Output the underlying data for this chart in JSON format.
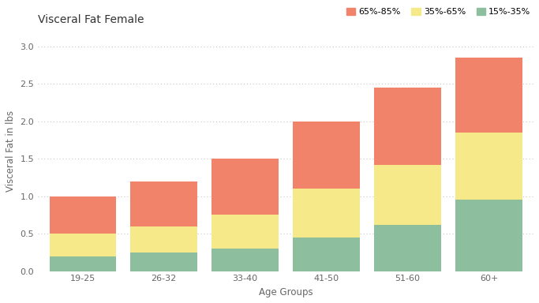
{
  "title": "Visceral Fat Female",
  "xlabel": "Age Groups",
  "ylabel": "Visceral Fat in lbs",
  "categories": [
    "19-25",
    "26-32",
    "33-40",
    "41-50",
    "51-60",
    "60+"
  ],
  "green_values": [
    0.2,
    0.25,
    0.3,
    0.45,
    0.62,
    0.95
  ],
  "yellow_values": [
    0.3,
    0.35,
    0.45,
    0.65,
    0.8,
    0.9
  ],
  "salmon_values": [
    0.5,
    0.6,
    0.75,
    0.9,
    1.03,
    1.0
  ],
  "color_green": "#8dbf9e",
  "color_yellow": "#f5e98a",
  "color_salmon": "#f0836a",
  "legend_labels": [
    "65%-85%",
    "35%-65%",
    "15%-35%"
  ],
  "ylim": [
    0,
    3.2
  ],
  "yticks": [
    0.0,
    0.5,
    1.0,
    1.5,
    2.0,
    2.5,
    3.0
  ],
  "background_color": "#ffffff",
  "grid_color": "#bbbbbb",
  "title_fontsize": 10,
  "label_fontsize": 8.5,
  "tick_fontsize": 8,
  "legend_fontsize": 8
}
